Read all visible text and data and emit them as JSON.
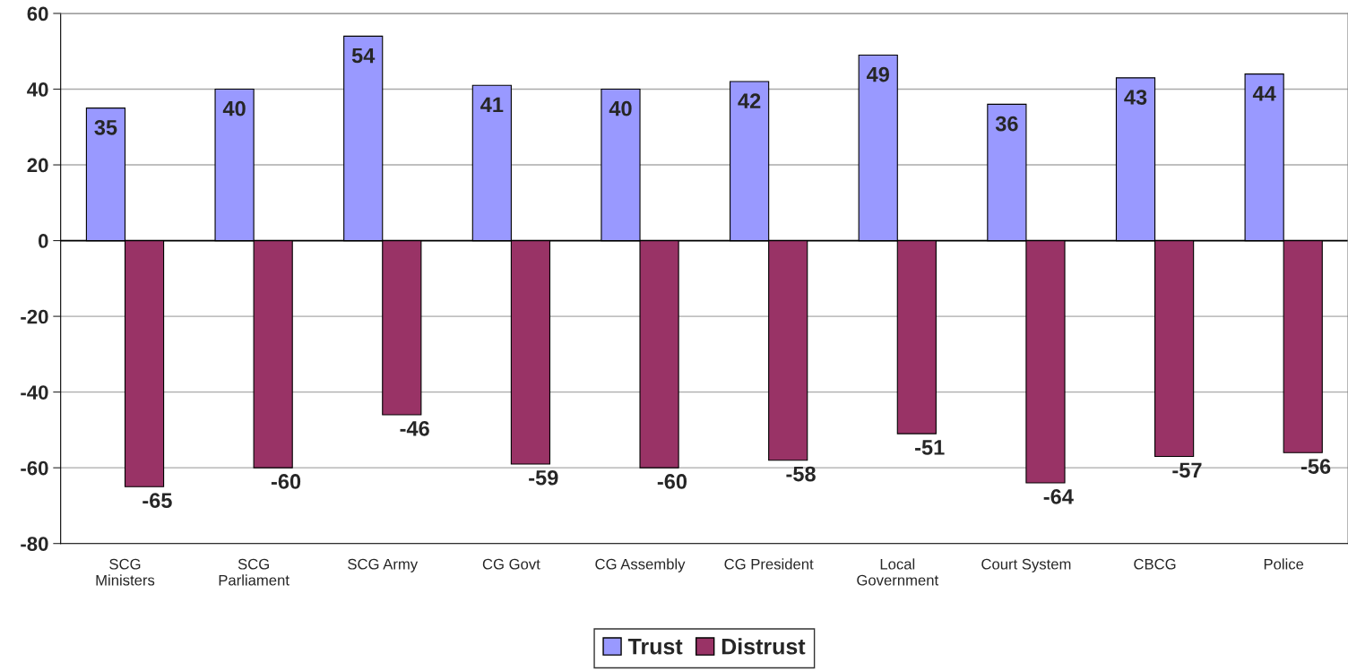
{
  "chart_data": {
    "type": "bar",
    "categories": [
      "SCG\nMinisters",
      "SCG\nParliament",
      "SCG Army",
      "CG Govt",
      "CG Assembly",
      "CG President",
      "Local\nGovernment",
      "Court System",
      "CBCG",
      "Police"
    ],
    "series": [
      {
        "name": "Trust",
        "color": "#9999ff",
        "values": [
          35,
          40,
          54,
          41,
          40,
          42,
          49,
          36,
          43,
          44
        ]
      },
      {
        "name": "Distrust",
        "color": "#993366",
        "values": [
          -65,
          -60,
          -46,
          -59,
          -60,
          -58,
          -51,
          -64,
          -57,
          -56
        ]
      }
    ],
    "ylim": [
      -80,
      60
    ],
    "yticks": [
      -80,
      -60,
      -40,
      -20,
      0,
      20,
      40,
      60
    ],
    "grid": "y",
    "legend": "bottom",
    "data_labels": true
  }
}
